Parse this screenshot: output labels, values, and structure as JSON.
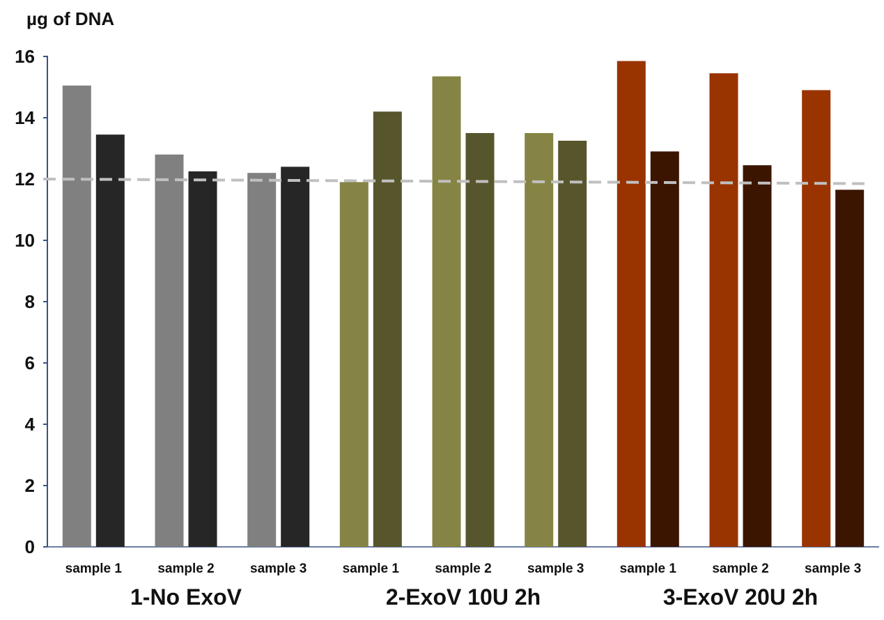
{
  "chart_data": {
    "type": "bar",
    "title": "",
    "ylabel": "µg of DNA",
    "xlabel": "",
    "ylim": [
      0,
      16
    ],
    "yticks": [
      0,
      2,
      4,
      6,
      8,
      10,
      12,
      14,
      16
    ],
    "grid": false,
    "reference_line": {
      "y": [
        12.0,
        11.85
      ],
      "style": "dashed",
      "color": "#c0c0c0"
    },
    "groups": [
      {
        "label": "1-No ExoV",
        "colors": [
          "#808080",
          "#262626"
        ],
        "categories": [
          "sample 1",
          "sample 2",
          "sample 3"
        ],
        "pairs": [
          [
            15.05,
            13.45
          ],
          [
            12.8,
            12.25
          ],
          [
            12.2,
            12.4
          ]
        ]
      },
      {
        "label": "2-ExoV 10U 2h",
        "colors": [
          "#868444",
          "#57552b"
        ],
        "categories": [
          "sample 1",
          "sample 2",
          "sample 3"
        ],
        "pairs": [
          [
            11.9,
            14.2
          ],
          [
            15.35,
            13.5
          ],
          [
            13.5,
            13.25
          ]
        ]
      },
      {
        "label": "3-ExoV 20U 2h",
        "colors": [
          "#993300",
          "#3b1500"
        ],
        "categories": [
          "sample 1",
          "sample 2",
          "sample 3"
        ],
        "pairs": [
          [
            15.85,
            12.9
          ],
          [
            15.45,
            12.45
          ],
          [
            14.9,
            11.65
          ]
        ]
      }
    ]
  }
}
